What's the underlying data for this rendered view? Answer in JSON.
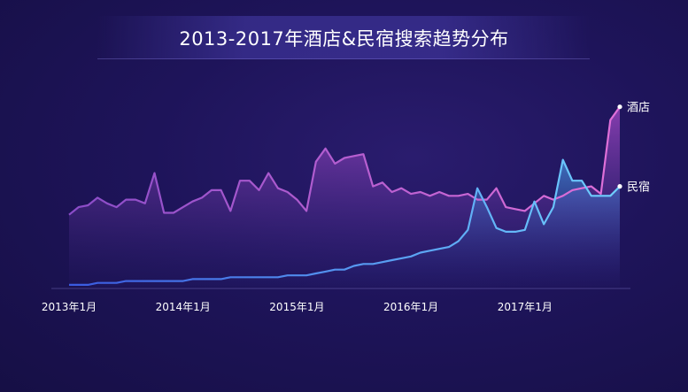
{
  "chart_data": {
    "type": "area",
    "title": "2013-2017年酒店&民宿搜索趋势分布",
    "xlabel": "",
    "ylabel": "",
    "x_tick_labels": [
      "2013年1月",
      "2014年1月",
      "2015年1月",
      "2016年1月",
      "2017年1月"
    ],
    "x_range": [
      0,
      58
    ],
    "ylim": [
      0,
      100
    ],
    "grid": false,
    "legend": "end-of-line labels",
    "series": [
      {
        "name": "酒店",
        "color": "#c25bd8",
        "values": [
          38,
          42,
          43,
          47,
          44,
          42,
          46,
          46,
          44,
          60,
          39,
          39,
          42,
          45,
          47,
          51,
          51,
          40,
          56,
          56,
          51,
          60,
          52,
          50,
          46,
          40,
          66,
          73,
          65,
          68,
          69,
          70,
          53,
          55,
          50,
          52,
          49,
          50,
          48,
          50,
          48,
          48,
          49,
          46,
          46,
          52,
          42,
          41,
          40,
          44,
          48,
          46,
          48,
          51,
          52,
          53,
          49,
          88,
          95
        ]
      },
      {
        "name": "民宿",
        "color": "#5ab4f0",
        "values": [
          1,
          1,
          1,
          2,
          2,
          2,
          3,
          3,
          3,
          3,
          3,
          3,
          3,
          4,
          4,
          4,
          4,
          5,
          5,
          5,
          5,
          5,
          5,
          6,
          6,
          6,
          7,
          8,
          9,
          9,
          11,
          12,
          12,
          13,
          14,
          15,
          16,
          18,
          19,
          20,
          21,
          24,
          30,
          52,
          42,
          31,
          29,
          29,
          30,
          45,
          33,
          42,
          67,
          56,
          56,
          48,
          48,
          48,
          53
        ]
      }
    ]
  }
}
